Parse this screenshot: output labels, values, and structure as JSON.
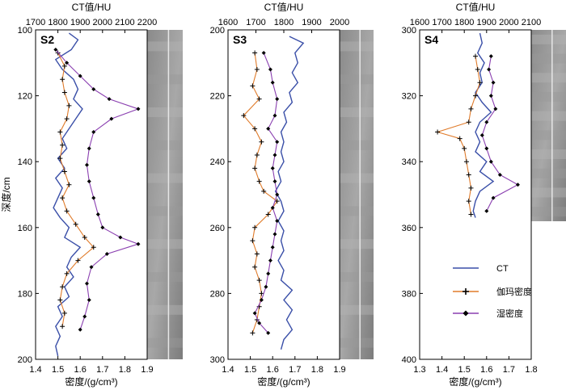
{
  "chart_data": [
    {
      "type": "line",
      "panel_label": "S2",
      "ylabel": "深度/cm",
      "top_axis_label": "CT值/HU",
      "bottom_axis_label": "密度/(g/cm³)",
      "ylim": [
        100,
        200
      ],
      "yticks": [
        100,
        120,
        140,
        160,
        180,
        200
      ],
      "top_xlim": [
        1700,
        2200
      ],
      "top_ticks": [
        1700,
        1800,
        1900,
        2000,
        2100,
        2200
      ],
      "bottom_xlim": [
        1.4,
        1.9
      ],
      "bottom_ticks": [
        1.4,
        1.5,
        1.6,
        1.7,
        1.8,
        1.9
      ],
      "core_image": true,
      "series": [
        {
          "name": "CT",
          "axis": "top",
          "color": "#3a4fa8",
          "points": [
            [
              1850,
              101
            ],
            [
              1890,
              103
            ],
            [
              1860,
              106
            ],
            [
              1790,
              109
            ],
            [
              1820,
              112
            ],
            [
              1870,
              115
            ],
            [
              1890,
              118
            ],
            [
              1870,
              121
            ],
            [
              1910,
              124
            ],
            [
              1880,
              127
            ],
            [
              1850,
              130
            ],
            [
              1820,
              133
            ],
            [
              1840,
              136
            ],
            [
              1800,
              139
            ],
            [
              1830,
              142
            ],
            [
              1790,
              145
            ],
            [
              1820,
              148
            ],
            [
              1800,
              151
            ],
            [
              1780,
              154
            ],
            [
              1810,
              157
            ],
            [
              1850,
              160
            ],
            [
              1830,
              163
            ],
            [
              1900,
              166
            ],
            [
              1860,
              169
            ],
            [
              1840,
              172
            ],
            [
              1870,
              175
            ],
            [
              1830,
              178
            ],
            [
              1850,
              181
            ],
            [
              1800,
              184
            ],
            [
              1820,
              187
            ],
            [
              1790,
              190
            ],
            [
              1810,
              193
            ],
            [
              1790,
              196
            ],
            [
              1800,
              199
            ]
          ]
        },
        {
          "name": "伽玛密度",
          "axis": "bottom",
          "color": "#e07b2a",
          "points": [
            [
              1.5,
              107
            ],
            [
              1.53,
              111
            ],
            [
              1.52,
              115
            ],
            [
              1.53,
              119
            ],
            [
              1.55,
              123
            ],
            [
              1.54,
              127
            ],
            [
              1.51,
              131
            ],
            [
              1.52,
              135
            ],
            [
              1.51,
              139
            ],
            [
              1.53,
              143
            ],
            [
              1.55,
              147
            ],
            [
              1.52,
              151
            ],
            [
              1.54,
              155
            ],
            [
              1.58,
              159
            ],
            [
              1.62,
              163
            ],
            [
              1.66,
              166
            ],
            [
              1.59,
              170
            ],
            [
              1.54,
              174
            ],
            [
              1.52,
              178
            ],
            [
              1.51,
              182
            ],
            [
              1.53,
              186
            ],
            [
              1.52,
              190
            ]
          ]
        },
        {
          "name": "湿密度",
          "axis": "bottom",
          "color": "#8a3fb0",
          "points": [
            [
              1.49,
              106
            ],
            [
              1.54,
              110
            ],
            [
              1.6,
              114
            ],
            [
              1.66,
              118
            ],
            [
              1.73,
              121
            ],
            [
              1.86,
              124
            ],
            [
              1.74,
              127
            ],
            [
              1.66,
              131
            ],
            [
              1.64,
              136
            ],
            [
              1.63,
              141
            ],
            [
              1.64,
              146
            ],
            [
              1.66,
              151
            ],
            [
              1.68,
              156
            ],
            [
              1.7,
              160
            ],
            [
              1.78,
              163
            ],
            [
              1.86,
              165
            ],
            [
              1.72,
              168
            ],
            [
              1.65,
              172
            ],
            [
              1.63,
              177
            ],
            [
              1.64,
              182
            ],
            [
              1.62,
              187
            ],
            [
              1.6,
              191
            ]
          ]
        }
      ]
    },
    {
      "type": "line",
      "panel_label": "S3",
      "top_axis_label": "CT值/HU",
      "bottom_axis_label": "密度/(g/cm³)",
      "ylim": [
        200,
        300
      ],
      "yticks": [
        200,
        220,
        240,
        260,
        280,
        300
      ],
      "top_xlim": [
        1600,
        2000
      ],
      "top_ticks": [
        1600,
        1700,
        1800,
        1900,
        2000
      ],
      "bottom_xlim": [
        1.4,
        1.9
      ],
      "bottom_ticks": [
        1.4,
        1.5,
        1.6,
        1.7,
        1.8,
        1.9
      ],
      "core_image": true,
      "series": [
        {
          "name": "CT",
          "axis": "top",
          "color": "#3a4fa8",
          "points": [
            [
              1820,
              202
            ],
            [
              1870,
              204
            ],
            [
              1840,
              207
            ],
            [
              1850,
              210
            ],
            [
              1830,
              213
            ],
            [
              1850,
              216
            ],
            [
              1820,
              219
            ],
            [
              1830,
              222
            ],
            [
              1800,
              225
            ],
            [
              1810,
              228
            ],
            [
              1790,
              231
            ],
            [
              1800,
              234
            ],
            [
              1790,
              237
            ],
            [
              1800,
              240
            ],
            [
              1780,
              243
            ],
            [
              1790,
              246
            ],
            [
              1770,
              249
            ],
            [
              1790,
              252
            ],
            [
              1800,
              255
            ],
            [
              1780,
              258
            ],
            [
              1800,
              261
            ],
            [
              1790,
              264
            ],
            [
              1800,
              267
            ],
            [
              1780,
              270
            ],
            [
              1800,
              273
            ],
            [
              1790,
              276
            ],
            [
              1830,
              279
            ],
            [
              1800,
              282
            ],
            [
              1830,
              285
            ],
            [
              1810,
              288
            ],
            [
              1830,
              291
            ],
            [
              1800,
              294
            ],
            [
              1790,
              297
            ]
          ]
        },
        {
          "name": "伽玛密度",
          "axis": "bottom",
          "color": "#e07b2a",
          "points": [
            [
              1.52,
              207
            ],
            [
              1.53,
              212
            ],
            [
              1.51,
              217
            ],
            [
              1.54,
              221
            ],
            [
              1.47,
              226
            ],
            [
              1.52,
              230
            ],
            [
              1.55,
              234
            ],
            [
              1.53,
              238
            ],
            [
              1.52,
              242
            ],
            [
              1.54,
              246
            ],
            [
              1.56,
              249
            ],
            [
              1.62,
              252
            ],
            [
              1.58,
              256
            ],
            [
              1.52,
              260
            ],
            [
              1.51,
              264
            ],
            [
              1.53,
              268
            ],
            [
              1.52,
              272
            ],
            [
              1.54,
              276
            ],
            [
              1.55,
              280
            ],
            [
              1.54,
              284
            ],
            [
              1.53,
              288
            ],
            [
              1.51,
              292
            ]
          ]
        },
        {
          "name": "湿密度",
          "axis": "bottom",
          "color": "#8a3fb0",
          "points": [
            [
              1.56,
              207
            ],
            [
              1.59,
              212
            ],
            [
              1.6,
              216
            ],
            [
              1.62,
              221
            ],
            [
              1.61,
              226
            ],
            [
              1.58,
              230
            ],
            [
              1.62,
              234
            ],
            [
              1.61,
              238
            ],
            [
              1.6,
              242
            ],
            [
              1.61,
              246
            ],
            [
              1.62,
              250
            ],
            [
              1.6,
              254
            ],
            [
              1.62,
              258
            ],
            [
              1.61,
              262
            ],
            [
              1.6,
              266
            ],
            [
              1.59,
              270
            ],
            [
              1.58,
              274
            ],
            [
              1.57,
              278
            ],
            [
              1.55,
              282
            ],
            [
              1.52,
              286
            ],
            [
              1.54,
              289
            ],
            [
              1.58,
              292
            ]
          ]
        }
      ]
    },
    {
      "type": "line",
      "panel_label": "S4",
      "top_axis_label": "CT值/HU",
      "bottom_axis_label": "密度/(g/cm³)",
      "ylim": [
        300,
        400
      ],
      "yticks": [
        300,
        320,
        340,
        360,
        380,
        400
      ],
      "top_xlim": [
        1600,
        2100
      ],
      "top_ticks": [
        1600,
        1700,
        1800,
        1900,
        2000,
        2100
      ],
      "bottom_xlim": [
        1.3,
        1.8
      ],
      "bottom_ticks": [
        1.3,
        1.4,
        1.5,
        1.6,
        1.7,
        1.8
      ],
      "core_image": true,
      "series": [
        {
          "name": "CT",
          "axis": "top",
          "color": "#3a4fa8",
          "points": [
            [
              1870,
              301
            ],
            [
              1880,
              304
            ],
            [
              1860,
              307
            ],
            [
              1890,
              310
            ],
            [
              1870,
              313
            ],
            [
              1880,
              316
            ],
            [
              1850,
              319
            ],
            [
              1880,
              322
            ],
            [
              1920,
              325
            ],
            [
              1870,
              328
            ],
            [
              1850,
              331
            ],
            [
              1870,
              334
            ],
            [
              1850,
              337
            ],
            [
              1900,
              340
            ],
            [
              1870,
              343
            ],
            [
              1930,
              346
            ],
            [
              1870,
              349
            ],
            [
              1850,
              352
            ],
            [
              1840,
              355
            ],
            [
              1850,
              357
            ]
          ]
        },
        {
          "name": "伽玛密度",
          "axis": "bottom",
          "color": "#e07b2a",
          "points": [
            [
              1.55,
              308
            ],
            [
              1.56,
              312
            ],
            [
              1.57,
              316
            ],
            [
              1.55,
              320
            ],
            [
              1.53,
              324
            ],
            [
              1.52,
              328
            ],
            [
              1.38,
              331
            ],
            [
              1.48,
              333
            ],
            [
              1.5,
              336
            ],
            [
              1.51,
              340
            ],
            [
              1.52,
              344
            ],
            [
              1.53,
              348
            ],
            [
              1.52,
              352
            ],
            [
              1.53,
              356
            ]
          ]
        },
        {
          "name": "湿密度",
          "axis": "bottom",
          "color": "#8a3fb0",
          "points": [
            [
              1.62,
              308
            ],
            [
              1.61,
              312
            ],
            [
              1.63,
              316
            ],
            [
              1.62,
              320
            ],
            [
              1.64,
              324
            ],
            [
              1.6,
              328
            ],
            [
              1.58,
              332
            ],
            [
              1.6,
              336
            ],
            [
              1.62,
              340
            ],
            [
              1.66,
              344
            ],
            [
              1.74,
              347
            ],
            [
              1.63,
              351
            ],
            [
              1.6,
              355
            ]
          ]
        }
      ]
    }
  ],
  "legend": {
    "items": [
      {
        "name": "CT",
        "color": "#3a4fa8",
        "marker": "none"
      },
      {
        "name": "伽玛密度",
        "color": "#e07b2a",
        "marker": "plus"
      },
      {
        "name": "湿密度",
        "color": "#8a3fb0",
        "marker": "diamond"
      }
    ]
  }
}
